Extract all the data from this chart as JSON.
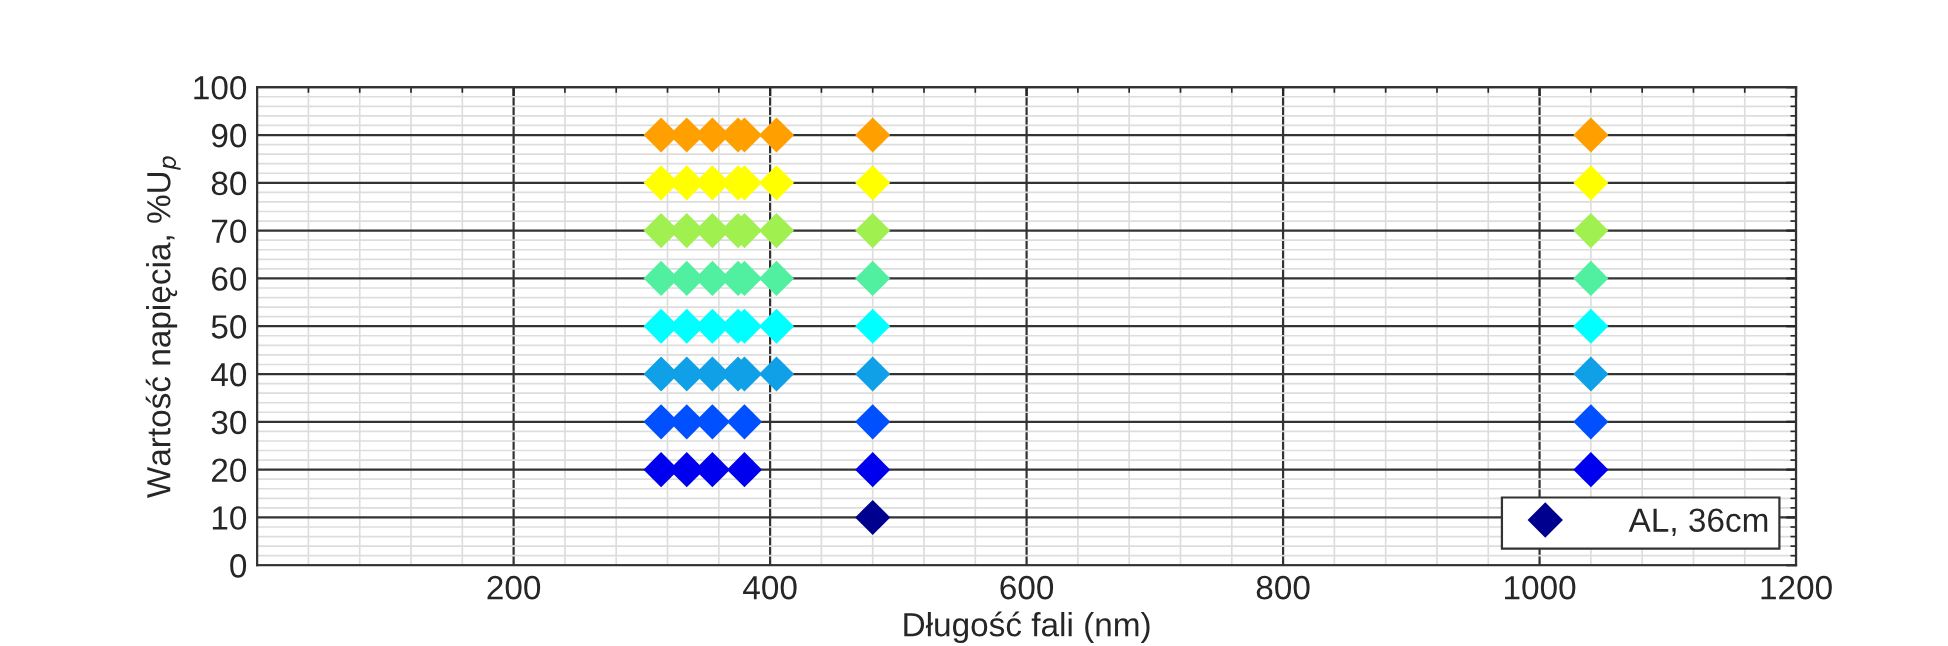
{
  "chart_data": {
    "type": "scatter",
    "xlabel": "Długość fali (nm)",
    "ylabel": "Wartość napięcia, %U$_{p}$",
    "xlim": [
      0,
      1200
    ],
    "xticks": [
      200,
      400,
      600,
      800,
      1000,
      1200
    ],
    "ylim": [
      0,
      100
    ],
    "yticks": [
      0,
      10,
      20,
      30,
      40,
      50,
      60,
      70,
      80,
      90,
      100
    ],
    "grid": true,
    "legend": "bottom right",
    "marker": "diamond",
    "series": [
      {
        "name": "AL, 36cm",
        "color": "#00008f",
        "x": [
          480,
          315,
          335,
          355,
          380,
          480,
          1040,
          315,
          335,
          355,
          380,
          480,
          1040,
          315,
          335,
          355,
          375,
          380,
          405,
          480,
          1040,
          315,
          335,
          355,
          375,
          380,
          405,
          480,
          1040,
          315,
          335,
          355,
          375,
          380,
          405,
          480,
          1040,
          315,
          335,
          355,
          375,
          380,
          405,
          480,
          1040,
          315,
          335,
          355,
          375,
          380,
          405,
          480,
          1040,
          315,
          335,
          355,
          375,
          380,
          405,
          480,
          1040
        ],
        "values": [
          10,
          20,
          20,
          20,
          20,
          20,
          20,
          30,
          30,
          30,
          30,
          30,
          30,
          40,
          40,
          40,
          40,
          40,
          40,
          40,
          40,
          50,
          50,
          50,
          50,
          50,
          50,
          50,
          50,
          60,
          60,
          60,
          60,
          60,
          60,
          60,
          60,
          70,
          70,
          70,
          70,
          70,
          70,
          70,
          70,
          80,
          80,
          80,
          80,
          80,
          80,
          80,
          80,
          90,
          90,
          90,
          90,
          90,
          90,
          90,
          90
        ],
        "colors": [
          "#00008f",
          "#0000ee",
          "#0000ee",
          "#0000ee",
          "#0000ee",
          "#0000ee",
          "#0000ee",
          "#0050ff",
          "#0050ff",
          "#0050ff",
          "#0050ff",
          "#0050ff",
          "#0050ff",
          "#10a0e8",
          "#10a0e8",
          "#10a0e8",
          "#10a0e8",
          "#10a0e8",
          "#10a0e8",
          "#10a0e8",
          "#10a0e8",
          "#00ffff",
          "#00ffff",
          "#00ffff",
          "#00ffff",
          "#00ffff",
          "#00ffff",
          "#00ffff",
          "#00ffff",
          "#50f0a0",
          "#50f0a0",
          "#50f0a0",
          "#50f0a0",
          "#50f0a0",
          "#50f0a0",
          "#50f0a0",
          "#50f0a0",
          "#a0f050",
          "#a0f050",
          "#a0f050",
          "#a0f050",
          "#a0f050",
          "#a0f050",
          "#a0f050",
          "#a0f050",
          "#ffff00",
          "#ffff00",
          "#ffff00",
          "#ffff00",
          "#ffff00",
          "#ffff00",
          "#ffff00",
          "#ffff00",
          "#ffa000",
          "#ffa000",
          "#ffa000",
          "#ffa000",
          "#ffa000",
          "#ffa000",
          "#ffa000",
          "#ffa000"
        ]
      }
    ]
  }
}
